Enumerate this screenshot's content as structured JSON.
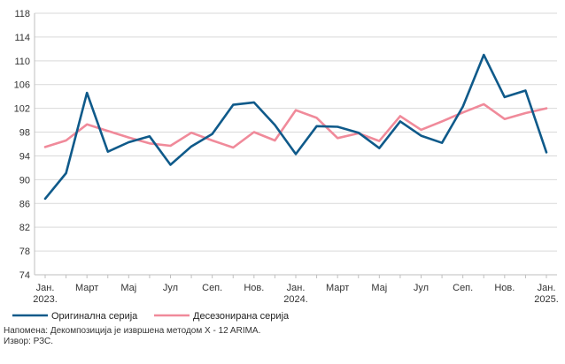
{
  "chart_data": {
    "type": "line",
    "x_labels": [
      {
        "index": 0,
        "lines": [
          "Јан.",
          "2023."
        ]
      },
      {
        "index": 2,
        "lines": [
          "Март"
        ]
      },
      {
        "index": 4,
        "lines": [
          "Мај"
        ]
      },
      {
        "index": 6,
        "lines": [
          "Јул"
        ]
      },
      {
        "index": 8,
        "lines": [
          "Сеп."
        ]
      },
      {
        "index": 10,
        "lines": [
          "Нов."
        ]
      },
      {
        "index": 12,
        "lines": [
          "Јан.",
          "2024."
        ]
      },
      {
        "index": 14,
        "lines": [
          "Март"
        ]
      },
      {
        "index": 16,
        "lines": [
          "Мај"
        ]
      },
      {
        "index": 18,
        "lines": [
          "Јул"
        ]
      },
      {
        "index": 20,
        "lines": [
          "Сеп."
        ]
      },
      {
        "index": 22,
        "lines": [
          "Нов."
        ]
      },
      {
        "index": 24,
        "lines": [
          "Јан.",
          "2025."
        ]
      }
    ],
    "ylim": [
      74,
      118
    ],
    "y_ticks": [
      74,
      78,
      82,
      86,
      90,
      94,
      98,
      102,
      106,
      110,
      114,
      118
    ],
    "grid": true,
    "legend_position": "bottom-left",
    "series": [
      {
        "name": "Оригинална серија",
        "color": "#0f5a8a",
        "values": [
          86.8,
          91.1,
          104.6,
          94.7,
          96.3,
          97.3,
          92.5,
          95.6,
          97.7,
          102.6,
          103.0,
          99.2,
          94.3,
          99.0,
          98.9,
          97.9,
          95.3,
          99.8,
          97.4,
          96.2,
          102.3,
          111.0,
          103.9,
          105.0,
          94.6
        ]
      },
      {
        "name": "Десезонирана серија",
        "color": "#f08a9a",
        "values": [
          95.5,
          96.6,
          99.3,
          98.2,
          97.1,
          96.1,
          95.7,
          97.9,
          96.6,
          95.4,
          98.0,
          96.6,
          101.7,
          100.4,
          97.0,
          97.8,
          96.5,
          100.7,
          98.4,
          99.8,
          101.3,
          102.7,
          100.2,
          101.2,
          102.0
        ]
      }
    ]
  },
  "notes": {
    "line1": "Напомена: Декомпозиција је извршена методом X - 12 ARIMA.",
    "line2": "Извор: РЗС."
  }
}
